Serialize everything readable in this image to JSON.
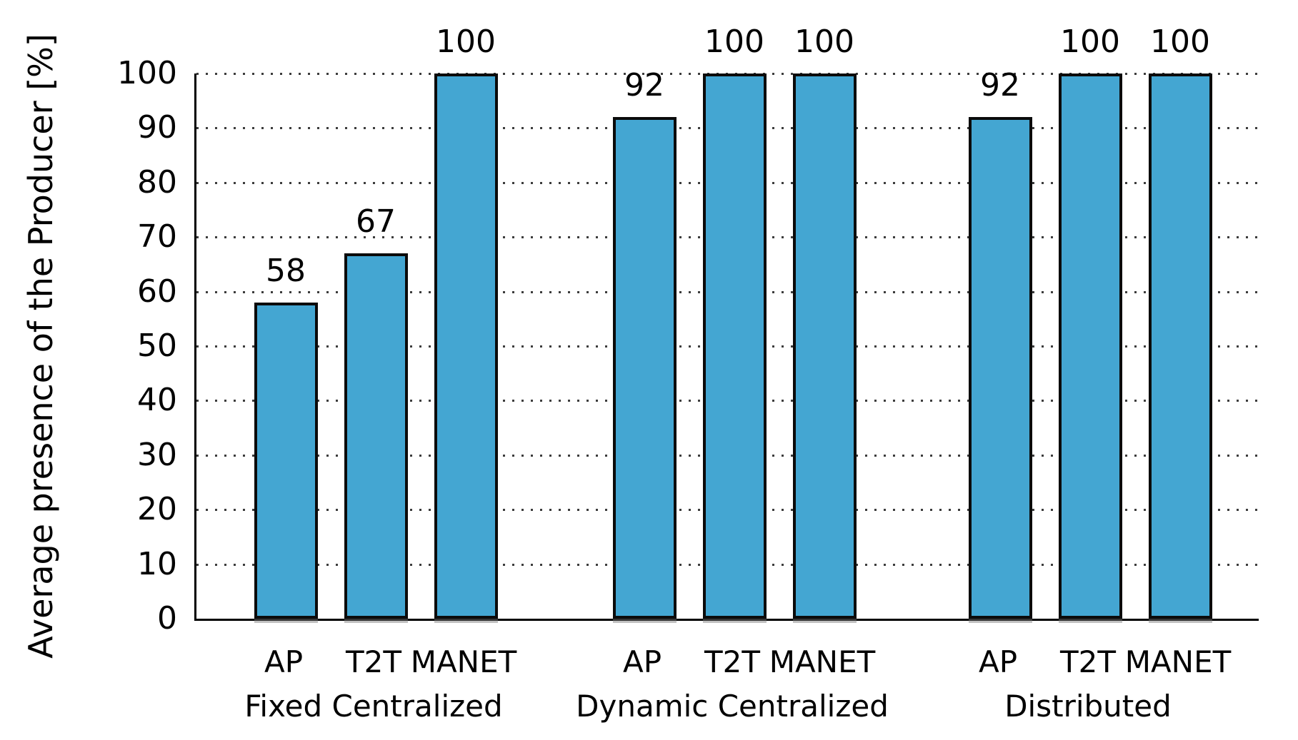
{
  "chart_data": {
    "type": "bar",
    "title": "",
    "ylabel": "Average presence of the Producer [%]",
    "xlabel": "",
    "ylim": [
      0,
      100
    ],
    "yticks": [
      0,
      10,
      20,
      30,
      40,
      50,
      60,
      70,
      80,
      90,
      100
    ],
    "grid": {
      "horizontal": true,
      "style": "dotted",
      "color": "#3c3c3c",
      "at_every": 10
    },
    "legend_position": "none",
    "bar_fill_color": "#44a6d2",
    "bar_border_color": "#0b0b0b",
    "categories": [
      "AP",
      "T2T",
      "MANET"
    ],
    "groups": [
      {
        "label": "Fixed Centralized",
        "values": [
          58,
          67,
          100
        ]
      },
      {
        "label": "Dynamic Centralized",
        "values": [
          92,
          100,
          100
        ]
      },
      {
        "label": "Distributed",
        "values": [
          92,
          100,
          100
        ]
      }
    ],
    "value_labels": [
      58,
      67,
      100,
      92,
      100,
      100,
      92,
      100,
      100
    ]
  }
}
